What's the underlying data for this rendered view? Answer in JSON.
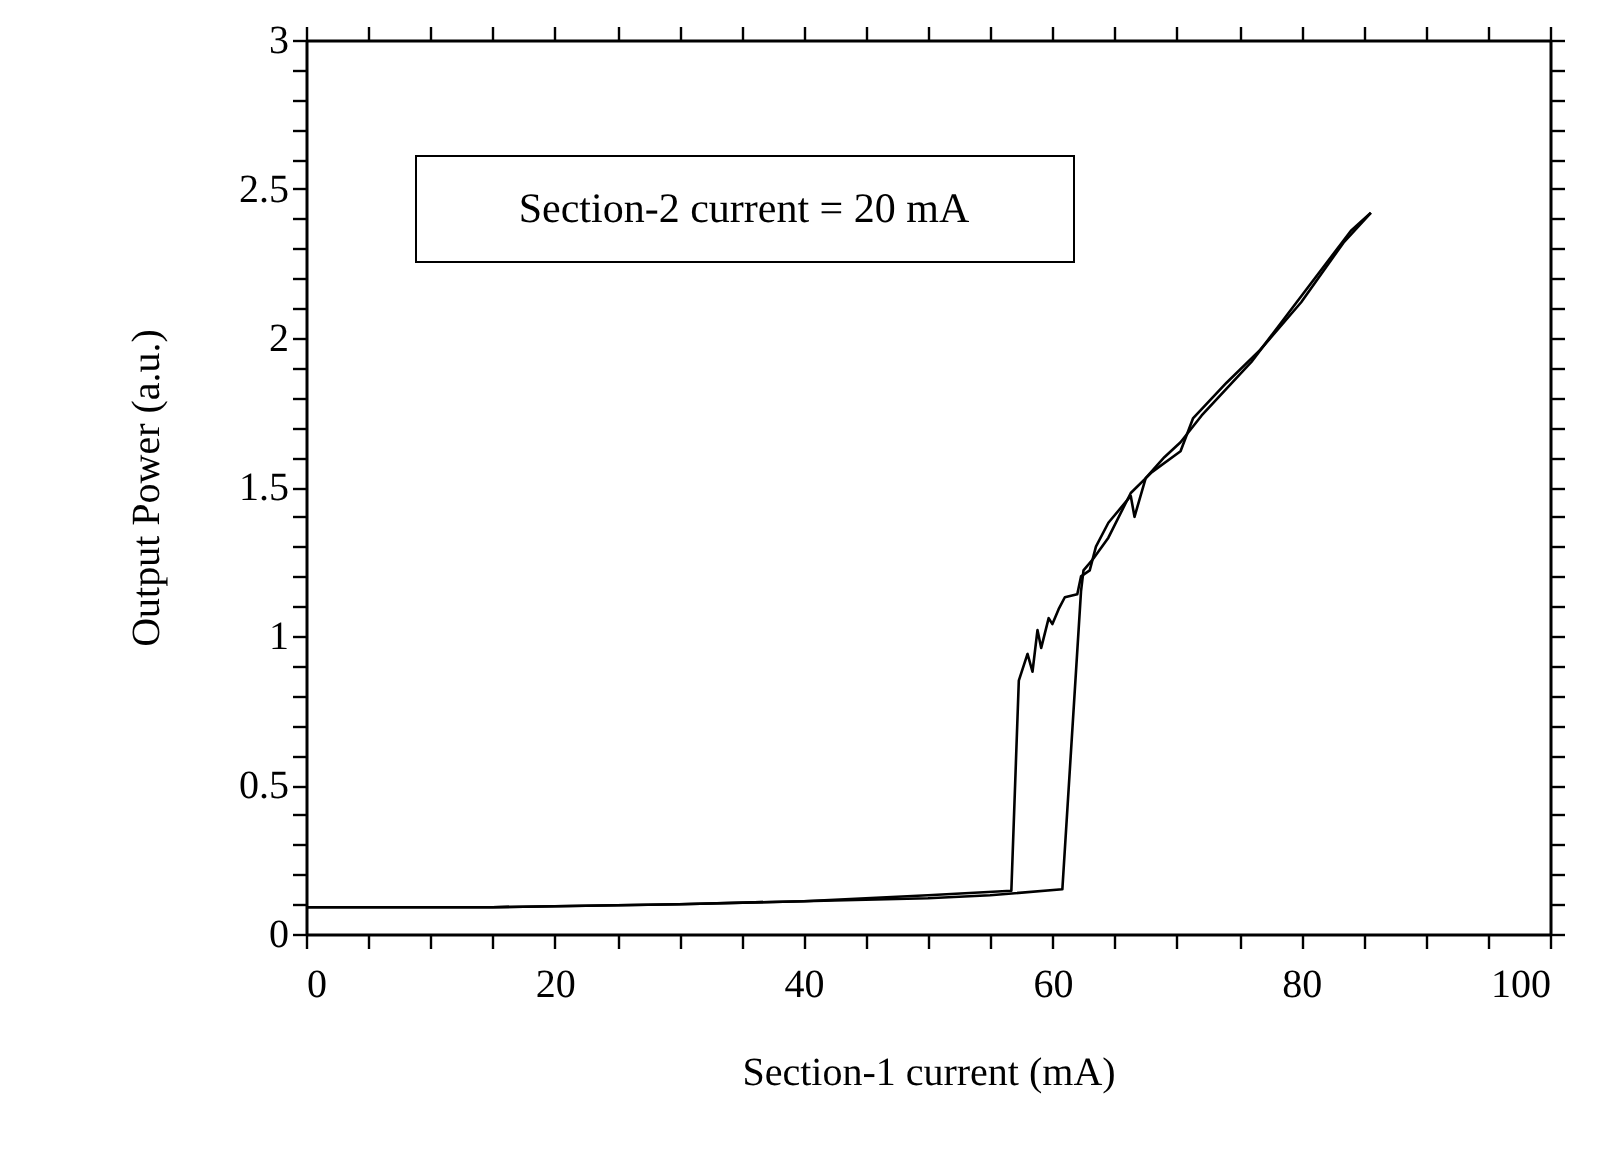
{
  "chart_data": {
    "type": "line",
    "xlabel": "Section-1 current (mA)",
    "ylabel": "Output Power (a.u.)",
    "annotations": [
      "Section-2 current = 20 mA"
    ],
    "xlim": [
      0,
      100
    ],
    "ylim": [
      0,
      3
    ],
    "xticks": [
      0,
      {
        "value": 5,
        "label": null
      },
      {
        "value": 10,
        "label": null
      },
      {
        "value": 15,
        "label": null
      },
      20,
      {
        "value": 25,
        "label": null
      },
      {
        "value": 30,
        "label": null
      },
      {
        "value": 35,
        "label": null
      },
      40,
      {
        "value": 45,
        "label": null
      },
      {
        "value": 50,
        "label": null
      },
      {
        "value": 55,
        "label": null
      },
      60,
      {
        "value": 65,
        "label": null
      },
      {
        "value": 70,
        "label": null
      },
      {
        "value": 75,
        "label": null
      },
      80,
      {
        "value": 85,
        "label": null
      },
      {
        "value": 90,
        "label": null
      },
      {
        "value": 95,
        "label": null
      },
      100
    ],
    "yticks": [
      0,
      {
        "value": 0.1,
        "label": null
      },
      {
        "value": 0.2,
        "label": null
      },
      {
        "value": 0.3,
        "label": null
      },
      {
        "value": 0.4,
        "label": null
      },
      0.5,
      {
        "value": 0.6,
        "label": null
      },
      {
        "value": 0.7,
        "label": null
      },
      {
        "value": 0.8,
        "label": null
      },
      {
        "value": 0.9,
        "label": null
      },
      1,
      {
        "value": 1.1,
        "label": null
      },
      {
        "value": 1.2,
        "label": null
      },
      {
        "value": 1.3,
        "label": null
      },
      {
        "value": 1.4,
        "label": null
      },
      1.5,
      {
        "value": 1.6,
        "label": null
      },
      {
        "value": 1.7,
        "label": null
      },
      {
        "value": 1.8,
        "label": null
      },
      {
        "value": 1.9,
        "label": null
      },
      2,
      {
        "value": 2.1,
        "label": null
      },
      {
        "value": 2.2,
        "label": null
      },
      {
        "value": 2.3,
        "label": null
      },
      {
        "value": 2.4,
        "label": null
      },
      2.5,
      {
        "value": 2.6,
        "label": null
      },
      {
        "value": 2.7,
        "label": null
      },
      {
        "value": 2.8,
        "label": null
      },
      {
        "value": 2.9,
        "label": null
      },
      3
    ],
    "line_style": "solid",
    "series": [
      {
        "color": "#000000",
        "x": [
          0,
          15,
          30,
          40,
          50,
          55,
          60.8,
          62.3,
          62.5,
          63.3,
          64.5,
          66.3,
          68,
          70.3,
          71.3,
          74,
          76.7,
          80,
          83.4,
          85.6
        ],
        "values": [
          0.09,
          0.09,
          0.1,
          0.11,
          0.12,
          0.13,
          0.15,
          1.15,
          1.22,
          1.26,
          1.33,
          1.48,
          1.55,
          1.62,
          1.73,
          1.85,
          1.96,
          2.12,
          2.32,
          2.42
        ]
      },
      {
        "color": "#000000",
        "x": [
          85.6,
          84,
          80,
          76,
          72,
          70.3,
          69,
          67.5,
          66.6,
          66.3,
          64.5,
          63.5,
          63,
          62.3,
          62,
          61,
          60.5,
          60,
          59.7,
          59.1,
          58.8,
          58.4,
          58,
          57.3,
          56.7,
          50,
          40,
          30,
          15,
          0
        ],
        "values": [
          2.42,
          2.36,
          2.14,
          1.92,
          1.74,
          1.65,
          1.6,
          1.53,
          1.4,
          1.47,
          1.38,
          1.3,
          1.22,
          1.2,
          1.14,
          1.13,
          1.09,
          1.04,
          1.06,
          0.96,
          1.02,
          0.88,
          0.94,
          0.85,
          0.145,
          0.13,
          0.11,
          0.1,
          0.09,
          0.09
        ]
      }
    ]
  }
}
